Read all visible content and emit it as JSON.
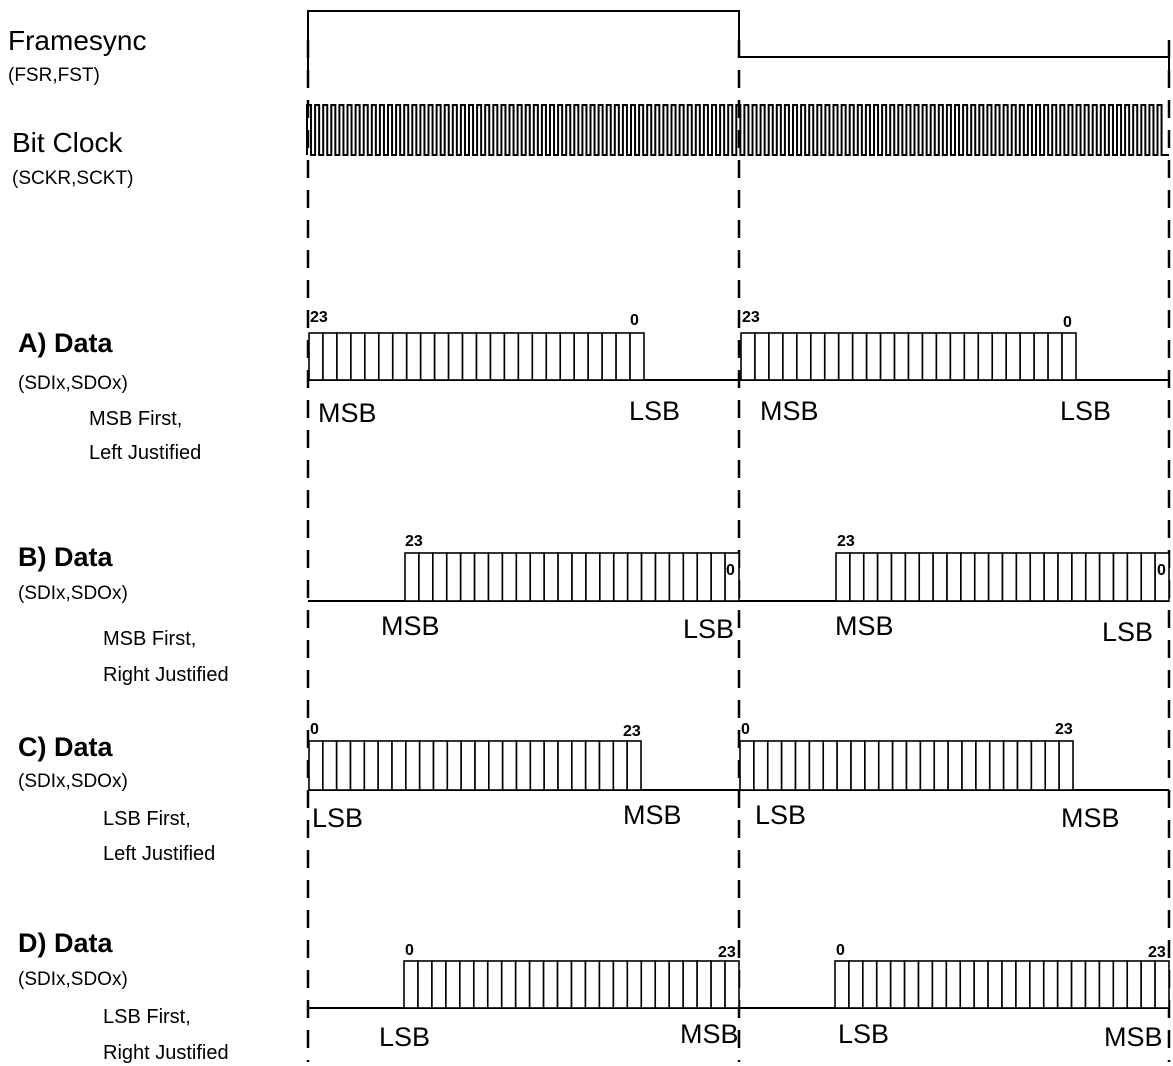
{
  "signals": {
    "framesync": {
      "name": "Framesync",
      "pins": "(FSR,FST)"
    },
    "bitclock": {
      "name": "Bit Clock",
      "pins": "(SCKR,SCKT)"
    }
  },
  "rows": [
    {
      "title": "A) Data",
      "pins": "(SDIx,SDOx)",
      "line1": "MSB First,",
      "line2": "Left Justified",
      "first_num": "23",
      "last_num": "0",
      "first_label": "MSB",
      "last_label": "LSB"
    },
    {
      "title": "B) Data",
      "pins": "(SDIx,SDOx)",
      "line1": "MSB First,",
      "line2": "Right Justified",
      "first_num": "23",
      "last_num": "0",
      "first_label": "MSB",
      "last_label": "LSB"
    },
    {
      "title": "C) Data",
      "pins": "(SDIx,SDOx)",
      "line1": "LSB First,",
      "line2": "Left Justified",
      "first_num": "0",
      "last_num": "23",
      "first_label": "LSB",
      "last_label": "MSB"
    },
    {
      "title": "D) Data",
      "pins": "(SDIx,SDOx)",
      "line1": "LSB First,",
      "line2": "Right Justified",
      "first_num": "0",
      "last_num": "23",
      "first_label": "LSB",
      "last_label": "MSB"
    }
  ],
  "colors": {
    "line": "#000000",
    "background": "#ffffff"
  }
}
